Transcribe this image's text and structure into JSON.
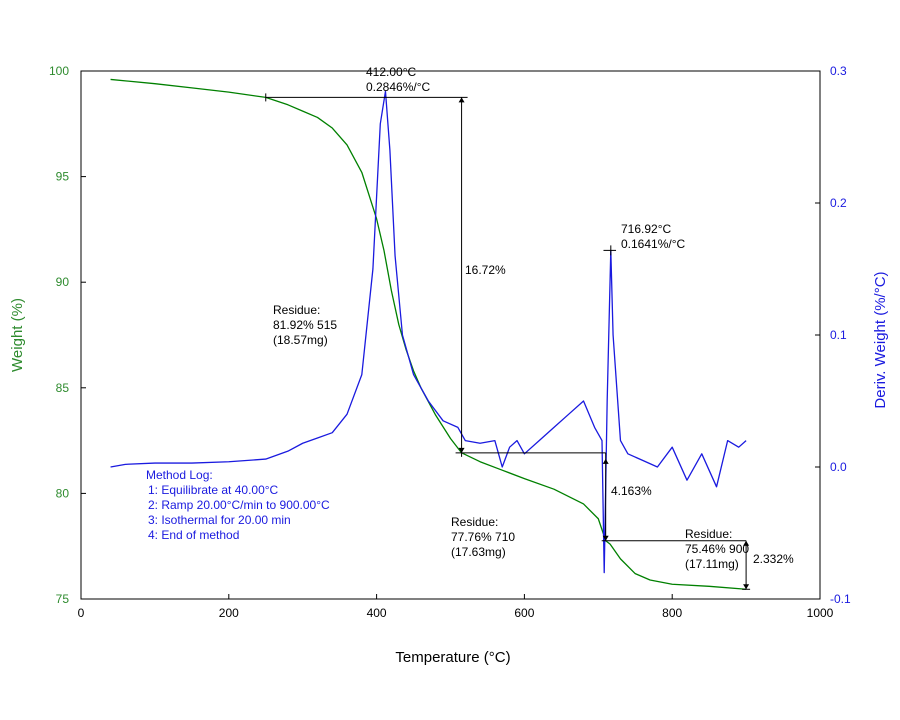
{
  "chart_data": {
    "type": "line",
    "xlabel": "Temperature (°C)",
    "ylabel_left": "Weight (%)",
    "ylabel_right": "Deriv. Weight (%/°C)",
    "xlim": [
      0,
      1000
    ],
    "ylim_left": [
      75,
      100
    ],
    "ylim_right": [
      -0.1,
      0.3
    ],
    "x_ticks": [
      "0",
      "200",
      "400",
      "600",
      "800",
      "1000"
    ],
    "y_left_ticks": [
      "75",
      "80",
      "85",
      "90",
      "95",
      "100"
    ],
    "y_right_ticks": [
      "-0.1",
      "0.0",
      "0.1",
      "0.2",
      "0.3"
    ],
    "grid": false,
    "colors": {
      "weight": "#008000",
      "deriv": "#1a1adf",
      "text": "#000000"
    },
    "series": [
      {
        "axis": "left",
        "color": "#008000",
        "points": [
          [
            40,
            99.6
          ],
          [
            100,
            99.4
          ],
          [
            150,
            99.2
          ],
          [
            200,
            99.0
          ],
          [
            250,
            98.75
          ],
          [
            280,
            98.4
          ],
          [
            300,
            98.1
          ],
          [
            320,
            97.8
          ],
          [
            340,
            97.3
          ],
          [
            360,
            96.5
          ],
          [
            380,
            95.2
          ],
          [
            400,
            93.0
          ],
          [
            410,
            91.5
          ],
          [
            420,
            89.6
          ],
          [
            430,
            88.0
          ],
          [
            440,
            86.8
          ],
          [
            450,
            85.8
          ],
          [
            460,
            85.0
          ],
          [
            480,
            83.7
          ],
          [
            500,
            82.6
          ],
          [
            515,
            81.92
          ],
          [
            540,
            81.5
          ],
          [
            570,
            81.1
          ],
          [
            600,
            80.7
          ],
          [
            640,
            80.2
          ],
          [
            680,
            79.5
          ],
          [
            700,
            78.8
          ],
          [
            710,
            77.76
          ],
          [
            716,
            77.6
          ],
          [
            730,
            76.9
          ],
          [
            750,
            76.2
          ],
          [
            770,
            75.9
          ],
          [
            800,
            75.7
          ],
          [
            850,
            75.6
          ],
          [
            900,
            75.46
          ]
        ]
      },
      {
        "axis": "right",
        "color": "#1a1adf",
        "points": [
          [
            40,
            0.0
          ],
          [
            60,
            0.002
          ],
          [
            100,
            0.003
          ],
          [
            150,
            0.003
          ],
          [
            200,
            0.004
          ],
          [
            250,
            0.006
          ],
          [
            280,
            0.012
          ],
          [
            300,
            0.018
          ],
          [
            320,
            0.022
          ],
          [
            340,
            0.026
          ],
          [
            360,
            0.04
          ],
          [
            380,
            0.07
          ],
          [
            395,
            0.15
          ],
          [
            405,
            0.26
          ],
          [
            412,
            0.2846
          ],
          [
            418,
            0.24
          ],
          [
            425,
            0.16
          ],
          [
            435,
            0.1
          ],
          [
            450,
            0.07
          ],
          [
            470,
            0.05
          ],
          [
            490,
            0.035
          ],
          [
            510,
            0.03
          ],
          [
            520,
            0.02
          ],
          [
            540,
            0.018
          ],
          [
            560,
            0.02
          ],
          [
            570,
            0.0
          ],
          [
            580,
            0.015
          ],
          [
            590,
            0.02
          ],
          [
            600,
            0.01
          ],
          [
            620,
            0.02
          ],
          [
            640,
            0.03
          ],
          [
            660,
            0.04
          ],
          [
            680,
            0.05
          ],
          [
            695,
            0.03
          ],
          [
            705,
            0.02
          ],
          [
            708,
            -0.08
          ],
          [
            712,
            0.05
          ],
          [
            716.92,
            0.1641
          ],
          [
            720,
            0.1
          ],
          [
            725,
            0.06
          ],
          [
            730,
            0.02
          ],
          [
            740,
            0.01
          ],
          [
            760,
            0.005
          ],
          [
            780,
            0.0
          ],
          [
            800,
            0.015
          ],
          [
            820,
            -0.01
          ],
          [
            840,
            0.01
          ],
          [
            860,
            -0.015
          ],
          [
            875,
            0.02
          ],
          [
            890,
            0.015
          ],
          [
            900,
            0.02
          ]
        ]
      }
    ],
    "annotations": [
      {
        "id": "peak1",
        "lines": [
          "412.00°C",
          "0.2846%/°C"
        ]
      },
      {
        "id": "step1",
        "lines": [
          "16.72%"
        ]
      },
      {
        "id": "res515",
        "lines": [
          "Residue:",
          "81.92% 515",
          "(18.57mg)"
        ]
      },
      {
        "id": "peak2",
        "lines": [
          "716.92°C",
          "0.1641%/°C"
        ]
      },
      {
        "id": "step2",
        "lines": [
          "4.163%"
        ]
      },
      {
        "id": "res710",
        "lines": [
          "Residue:",
          "77.76% 710",
          "(17.63mg)"
        ]
      },
      {
        "id": "res900",
        "lines": [
          "Residue:",
          "75.46% 900",
          "(17.11mg)"
        ]
      },
      {
        "id": "step3",
        "lines": [
          "2.332%"
        ]
      }
    ],
    "method_log": [
      "Method Log:",
      "1: Equilibrate at 40.00°C",
      "2: Ramp 20.00°C/min to 900.00°C",
      "3: Isothermal for 20.00 min",
      "4: End of method"
    ]
  }
}
